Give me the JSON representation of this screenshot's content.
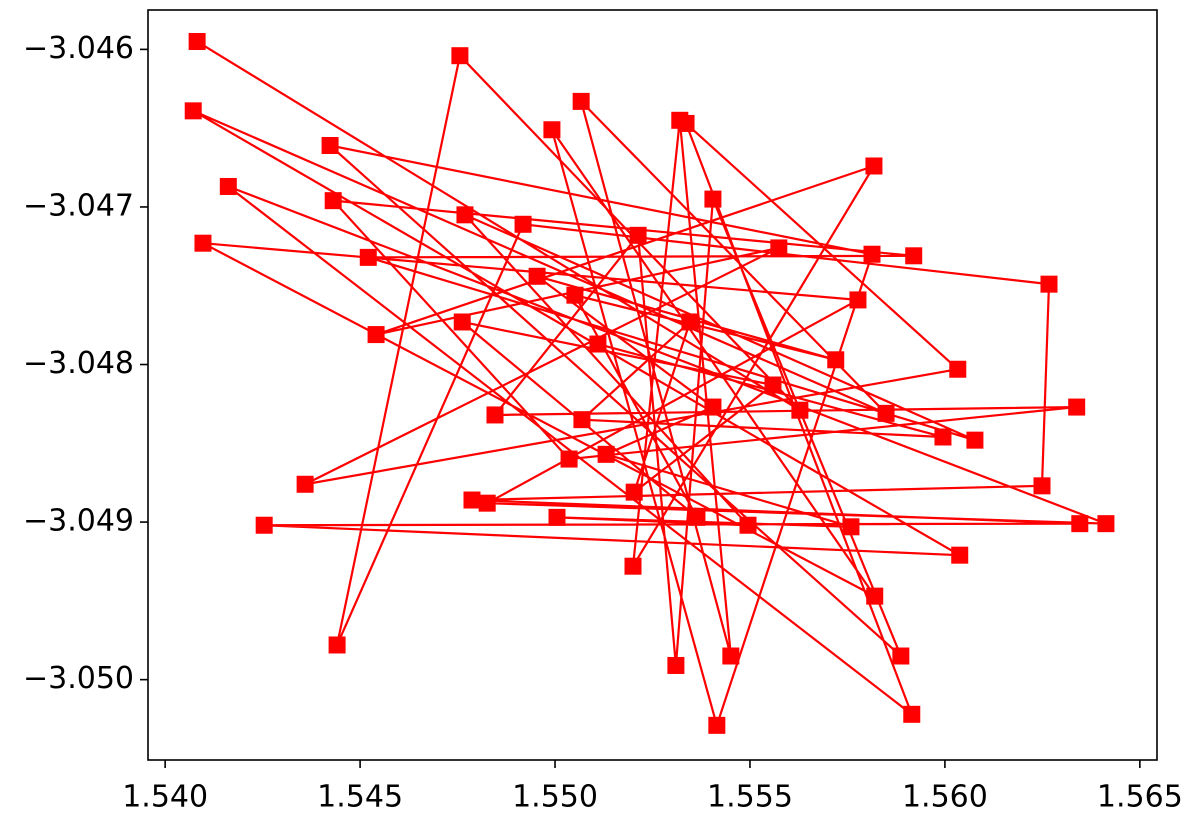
{
  "chart_data": {
    "type": "line",
    "color": "#ff0000",
    "marker": "square",
    "x": [
      1.54082,
      1.55628,
      1.54756,
      1.54441,
      1.54918,
      1.56267,
      1.56249,
      1.54787,
      1.56346,
      1.54254,
      1.56038,
      1.54072,
      1.55849,
      1.55067,
      1.55451,
      1.5532,
      1.552,
      1.55818,
      1.54541,
      1.55574,
      1.54359,
      1.56033,
      1.55336,
      1.55915,
      1.54162,
      1.56413,
      1.54826,
      1.55777,
      1.54097,
      1.5582,
      1.54992,
      1.55415,
      1.55813,
      1.54423,
      1.55887,
      1.55405,
      1.5531,
      1.55213,
      1.54846,
      1.56338,
      1.55036,
      1.54431,
      1.5592,
      1.54521,
      1.56077,
      1.54769,
      1.55495,
      1.55005,
      1.55759,
      1.55131,
      1.55405,
      1.54954,
      1.5572,
      1.55051,
      1.55364,
      1.54762,
      1.55559,
      1.55203,
      1.55346,
      1.55069,
      1.55995,
      1.5511
    ],
    "values": [
      -3.04595,
      -3.04829,
      -3.04604,
      -3.04978,
      -3.04711,
      -3.04749,
      -3.04877,
      -3.04886,
      -3.04901,
      -3.04902,
      -3.04921,
      -3.04639,
      -3.04831,
      -3.04633,
      -3.04985,
      -3.04645,
      -3.04928,
      -3.04674,
      -3.04781,
      -3.04726,
      -3.04876,
      -3.04803,
      -3.04647,
      -3.05022,
      -3.04687,
      -3.04901,
      -3.04888,
      -3.04759,
      -3.04723,
      -3.04947,
      -3.04651,
      -3.05029,
      -3.0473,
      -3.04661,
      -3.04985,
      -3.04695,
      -3.04991,
      -3.04718,
      -3.04832,
      -3.04827,
      -3.0486,
      -3.04696,
      -3.04731,
      -3.04732,
      -3.04848,
      -3.04705,
      -3.04902,
      -3.04897,
      -3.04903,
      -3.04857,
      -3.04827,
      -3.04744,
      -3.04797,
      -3.04756,
      -3.04897,
      -3.04773,
      -3.04813,
      -3.04881,
      -3.04773,
      -3.04835,
      -3.04846,
      -3.04787
    ],
    "xlim": [
      1.53956,
      1.56544
    ],
    "ylim": [
      -3.05051,
      -3.04575
    ],
    "xticks": [
      {
        "value": 1.54,
        "label": "1.540"
      },
      {
        "value": 1.545,
        "label": "1.545"
      },
      {
        "value": 1.55,
        "label": "1.550"
      },
      {
        "value": 1.555,
        "label": "1.555"
      },
      {
        "value": 1.56,
        "label": "1.560"
      },
      {
        "value": 1.565,
        "label": "1.565"
      }
    ],
    "yticks": [
      {
        "value": -3.046,
        "label": "−3.046"
      },
      {
        "value": -3.047,
        "label": "−3.047"
      },
      {
        "value": -3.048,
        "label": "−3.048"
      },
      {
        "value": -3.049,
        "label": "−3.049"
      },
      {
        "value": -3.05,
        "label": "−3.050"
      }
    ]
  }
}
